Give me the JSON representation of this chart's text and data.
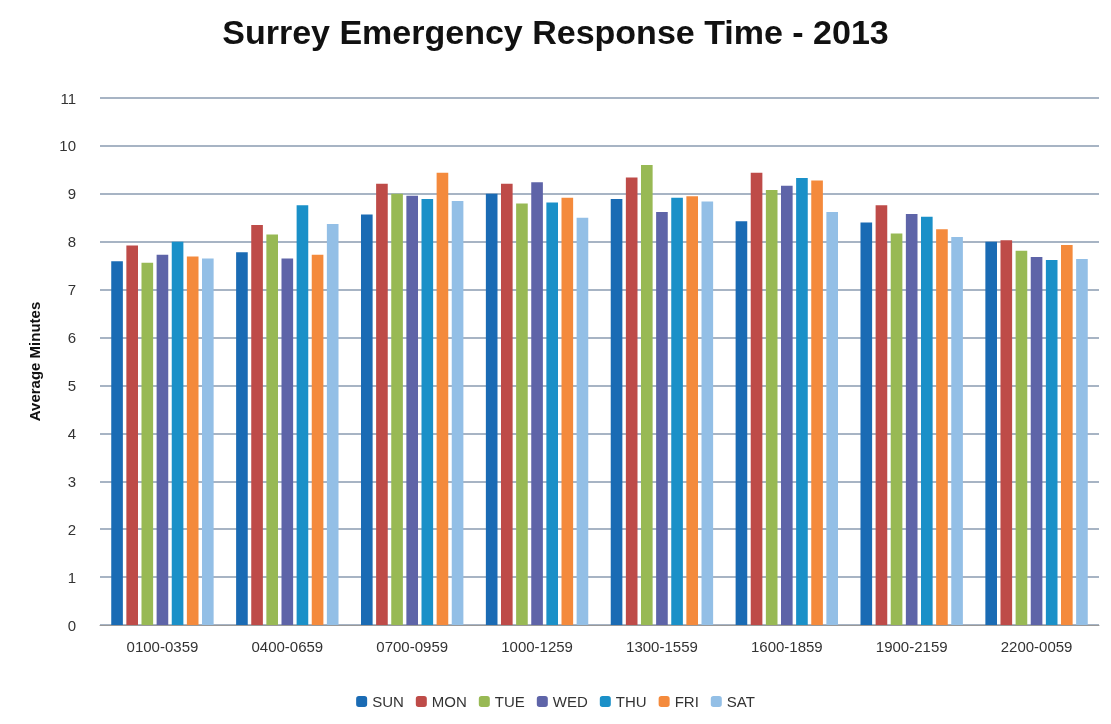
{
  "chart_data": {
    "type": "bar",
    "title": "Surrey Emergency Response Time - 2013",
    "ylabel": "Average Minutes",
    "categories": [
      "0100-0359",
      "0400-0659",
      "0700-0959",
      "1000-1259",
      "1300-1559",
      "1600-1859",
      "1900-2159",
      "2200-0059"
    ],
    "series": [
      {
        "name": "SUN",
        "color": "#1a6bb4",
        "values": [
          7.59,
          7.78,
          8.57,
          9.0,
          8.89,
          8.43,
          8.4,
          8.0
        ]
      },
      {
        "name": "MON",
        "color": "#be4b48",
        "values": [
          7.92,
          8.35,
          9.21,
          9.21,
          9.34,
          9.44,
          8.76,
          8.03
        ]
      },
      {
        "name": "TUE",
        "color": "#98b954",
        "values": [
          7.56,
          8.15,
          9.0,
          8.8,
          9.6,
          9.08,
          8.17,
          7.81
        ]
      },
      {
        "name": "WED",
        "color": "#5e64a8",
        "values": [
          7.73,
          7.65,
          8.96,
          9.24,
          8.62,
          9.17,
          8.58,
          7.68
        ]
      },
      {
        "name": "THU",
        "color": "#1a90c8",
        "values": [
          8.0,
          8.76,
          8.89,
          8.82,
          8.92,
          9.33,
          8.52,
          7.62
        ]
      },
      {
        "name": "FRI",
        "color": "#f48a3c",
        "values": [
          7.69,
          7.73,
          9.44,
          8.92,
          8.95,
          9.28,
          8.26,
          7.93
        ]
      },
      {
        "name": "SAT",
        "color": "#93bfe6",
        "values": [
          7.65,
          8.37,
          8.85,
          8.5,
          8.84,
          8.62,
          8.1,
          7.64
        ]
      }
    ],
    "ylim": [
      0,
      11
    ],
    "yticks": [
      0,
      1,
      2,
      3,
      4,
      5,
      6,
      7,
      8,
      9,
      10,
      11
    ],
    "grid": "y",
    "legend": "bottom"
  }
}
